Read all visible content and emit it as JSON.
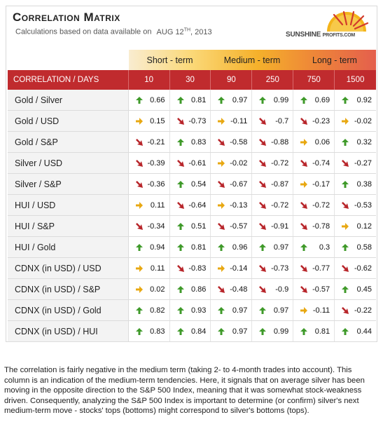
{
  "header": {
    "title": "Correlation Matrix",
    "subtitle": "Calculations based on data available on",
    "date": "AUG 12",
    "date_sup": "TH",
    "year": ", 2013",
    "logo_main": "SUNSHINE ",
    "logo_small": "PROFITS.COM"
  },
  "terms": [
    "Short - term",
    "Medium - term",
    "Long - term"
  ],
  "columns": {
    "label": "CORRELATION / DAYS",
    "days": [
      "10",
      "30",
      "90",
      "250",
      "750",
      "1500"
    ]
  },
  "rows": [
    {
      "label": "Gold / Silver",
      "values": [
        "0.66",
        "0.81",
        "0.97",
        "0.99",
        "0.69",
        "0.92"
      ],
      "arrows": [
        "up",
        "up",
        "up",
        "up",
        "up",
        "up"
      ]
    },
    {
      "label": "Gold / USD",
      "values": [
        "0.15",
        "-0.73",
        "-0.11",
        "-0.7",
        "-0.23",
        "-0.02"
      ],
      "arrows": [
        "flat",
        "down",
        "flat",
        "down",
        "down",
        "flat"
      ]
    },
    {
      "label": "Gold / S&P",
      "values": [
        "-0.21",
        "0.83",
        "-0.58",
        "-0.88",
        "0.06",
        "0.32"
      ],
      "arrows": [
        "down",
        "up",
        "down",
        "down",
        "flat",
        "up"
      ]
    },
    {
      "label": "Silver / USD",
      "values": [
        "-0.39",
        "-0.61",
        "-0.02",
        "-0.72",
        "-0.74",
        "-0.27"
      ],
      "arrows": [
        "down",
        "down",
        "flat",
        "down",
        "down",
        "down"
      ]
    },
    {
      "label": "Silver / S&P",
      "values": [
        "-0.36",
        "0.54",
        "-0.67",
        "-0.87",
        "-0.17",
        "0.38"
      ],
      "arrows": [
        "down",
        "up",
        "down",
        "down",
        "flat",
        "up"
      ]
    },
    {
      "label": "HUI / USD",
      "values": [
        "0.11",
        "-0.64",
        "-0.13",
        "-0.72",
        "-0.72",
        "-0.53"
      ],
      "arrows": [
        "flat",
        "down",
        "flat",
        "down",
        "down",
        "down"
      ]
    },
    {
      "label": "HUI / S&P",
      "values": [
        "-0.34",
        "0.51",
        "-0.57",
        "-0.91",
        "-0.78",
        "0.12"
      ],
      "arrows": [
        "down",
        "up",
        "down",
        "down",
        "down",
        "flat"
      ]
    },
    {
      "label": "HUI / Gold",
      "values": [
        "0.94",
        "0.81",
        "0.96",
        "0.97",
        "0.3",
        "0.58"
      ],
      "arrows": [
        "up",
        "up",
        "up",
        "up",
        "up",
        "up"
      ]
    },
    {
      "label": "CDNX (in USD) / USD",
      "values": [
        "0.11",
        "-0.83",
        "-0.14",
        "-0.73",
        "-0.77",
        "-0.62"
      ],
      "arrows": [
        "flat",
        "down",
        "flat",
        "down",
        "down",
        "down"
      ]
    },
    {
      "label": "CDNX (in USD) / S&P",
      "values": [
        "0.02",
        "0.86",
        "-0.48",
        "-0.9",
        "-0.57",
        "0.45"
      ],
      "arrows": [
        "flat",
        "up",
        "down",
        "down",
        "down",
        "up"
      ]
    },
    {
      "label": "CDNX (in USD) / Gold",
      "values": [
        "0.82",
        "0.93",
        "0.97",
        "0.97",
        "-0.11",
        "-0.22"
      ],
      "arrows": [
        "up",
        "up",
        "up",
        "up",
        "flat",
        "down"
      ]
    },
    {
      "label": "CDNX (in USD) / HUI",
      "values": [
        "0.83",
        "0.84",
        "0.97",
        "0.99",
        "0.81",
        "0.44"
      ],
      "arrows": [
        "up",
        "up",
        "up",
        "up",
        "up",
        "up"
      ]
    }
  ],
  "colors": {
    "up": "#3f9a2a",
    "down": "#b8262b",
    "flat": "#e8a812",
    "header_red": "#c02b2e"
  },
  "note": "The correlation is fairly negative in the medium term (taking 2- to 4-month trades into account). This column is an indication of the medium-term tendencies. Here, it signals that on average silver has been moving in the opposite direction to the S&P 500 Index, meaning that it was somewhat stock-weakness driven. Consequently, analyzing the S&P 500 Index is important to determine (or confirm) silver's next medium-term move - stocks' tops (bottoms) might correspond to silver's bottoms (tops)."
}
